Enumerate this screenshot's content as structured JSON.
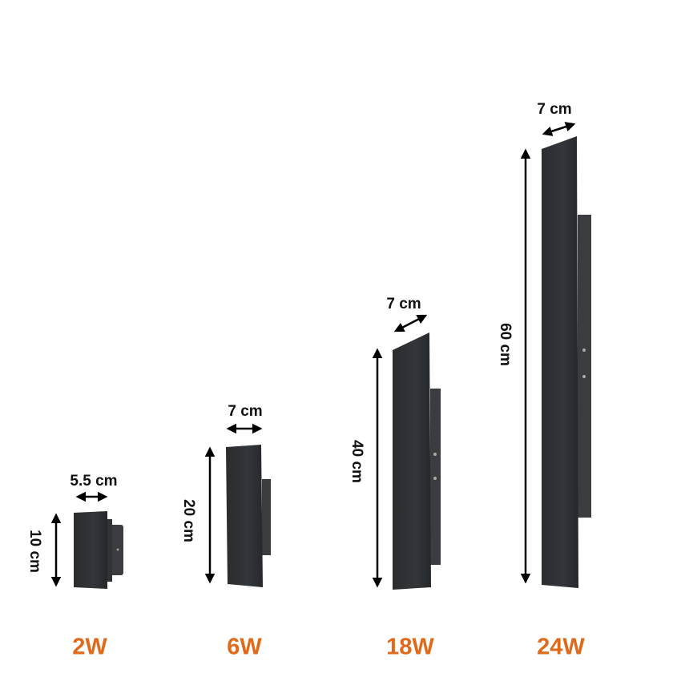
{
  "colors": {
    "label_accent": "#e0691a",
    "lamp_body": "#2b2d2f",
    "arrow": "#000000"
  },
  "products": [
    {
      "power": "2W",
      "width": "5.5 cm",
      "height": "10 cm"
    },
    {
      "power": "6W",
      "width": "7 cm",
      "height": "20 cm"
    },
    {
      "power": "18W",
      "width": "7 cm",
      "height": "40 cm"
    },
    {
      "power": "24W",
      "width": "7 cm",
      "height": "60 cm"
    }
  ]
}
